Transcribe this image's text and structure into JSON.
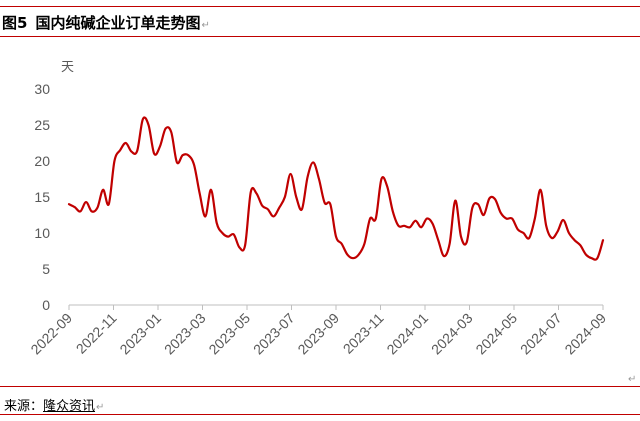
{
  "title": {
    "figure_number": "图5",
    "text": "国内纯碱企业订单走势图",
    "mark": "↵"
  },
  "source": {
    "label": "来源：",
    "name": "隆众资讯",
    "mark": "↵"
  },
  "end_mark": "↵",
  "colors": {
    "line": "#c00000",
    "rules": "#c00000",
    "axis": "#bfbfbf",
    "text": "#595959"
  },
  "chart_data": {
    "type": "line",
    "title": "",
    "xlabel": "",
    "ylabel": "天",
    "ylim": [
      0,
      30
    ],
    "yticks": [
      0,
      5,
      10,
      15,
      20,
      25,
      30
    ],
    "grid": false,
    "legend": "none",
    "x_tick_labels": [
      "2022-09",
      "2022-11",
      "2023-01",
      "2023-03",
      "2023-05",
      "2023-07",
      "2023-09",
      "2023-11",
      "2024-01",
      "2024-03",
      "2024-05",
      "2024-07",
      "2024-09"
    ],
    "series": [
      {
        "values": [
          14.0,
          13.6,
          13.0,
          14.3,
          13.0,
          13.5,
          16.0,
          14.0,
          20.0,
          21.5,
          22.5,
          21.3,
          21.4,
          25.8,
          25.0,
          21.0,
          22.0,
          24.5,
          24.0,
          19.8,
          20.8,
          20.8,
          19.5,
          15.5,
          12.3,
          16.0,
          11.4,
          10.0,
          9.5,
          9.8,
          8.0,
          8.3,
          15.7,
          15.5,
          13.8,
          13.3,
          12.3,
          13.5,
          15.0,
          18.2,
          15.0,
          13.3,
          17.8,
          19.8,
          17.5,
          14.2,
          14.0,
          9.5,
          8.5,
          7.0,
          6.5,
          7.0,
          8.5,
          12.0,
          12.0,
          17.5,
          16.5,
          13.0,
          11.0,
          11.0,
          10.8,
          11.7,
          10.8,
          12.0,
          11.3,
          9.0,
          6.8,
          8.5,
          14.5,
          9.5,
          8.7,
          13.5,
          14.0,
          12.5,
          14.8,
          14.7,
          12.8,
          12.0,
          12.0,
          10.5,
          10.0,
          9.3,
          12.0,
          16.0,
          11.0,
          9.3,
          10.2,
          11.8,
          10.0,
          9.0,
          8.3,
          7.0,
          6.5,
          6.5,
          9.0
        ]
      }
    ]
  }
}
